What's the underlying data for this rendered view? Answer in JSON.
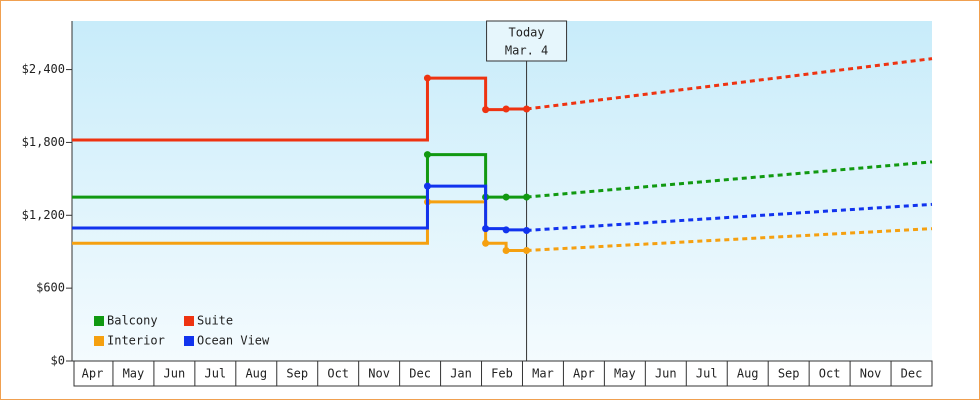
{
  "chart_data": {
    "type": "step-line",
    "categories": [
      "Apr",
      "May",
      "Jun",
      "Jul",
      "Aug",
      "Sep",
      "Oct",
      "Nov",
      "Dec",
      "Jan",
      "Feb",
      "Mar",
      "Apr",
      "May",
      "Jun",
      "Jul",
      "Aug",
      "Sep",
      "Oct",
      "Nov",
      "Dec"
    ],
    "xlim": [
      0,
      21
    ],
    "ylim": [
      0,
      2800
    ],
    "yticks": [
      {
        "value": 0,
        "label": "$0"
      },
      {
        "value": 600,
        "label": "$600"
      },
      {
        "value": 1200,
        "label": "$1,200"
      },
      {
        "value": 1800,
        "label": "$1,800"
      },
      {
        "value": 2400,
        "label": "$2,400"
      }
    ],
    "legend_position": "lower left",
    "annotation": {
      "x": 11.1,
      "lines": [
        "Today",
        "Mar. 4"
      ]
    },
    "series": [
      {
        "name": "Balcony",
        "color": "#119911",
        "x": [
          0,
          8.68,
          10.1,
          10.6,
          11.1
        ],
        "values": [
          1350,
          1700,
          1350,
          1350,
          1350
        ],
        "forecast": {
          "x": [
            11.1,
            21
          ],
          "values": [
            1350,
            1640
          ]
        }
      },
      {
        "name": "Suite",
        "color": "#ee3311",
        "x": [
          0,
          8.68,
          10.1,
          10.6,
          11.1
        ],
        "values": [
          1820,
          2330,
          2070,
          2075,
          2075
        ],
        "forecast": {
          "x": [
            11.1,
            21
          ],
          "values": [
            2075,
            2490
          ]
        }
      },
      {
        "name": "Interior",
        "color": "#f5a010",
        "x": [
          0,
          8.68,
          10.1,
          10.6,
          11.1
        ],
        "values": [
          970,
          1310,
          970,
          910,
          910
        ],
        "forecast": {
          "x": [
            11.1,
            21
          ],
          "values": [
            910,
            1090
          ]
        }
      },
      {
        "name": "Ocean View",
        "color": "#1133ee",
        "x": [
          0,
          8.68,
          10.1,
          10.6,
          11.1
        ],
        "values": [
          1095,
          1440,
          1090,
          1080,
          1075
        ],
        "forecast": {
          "x": [
            11.1,
            21
          ],
          "values": [
            1075,
            1290
          ]
        }
      }
    ]
  }
}
